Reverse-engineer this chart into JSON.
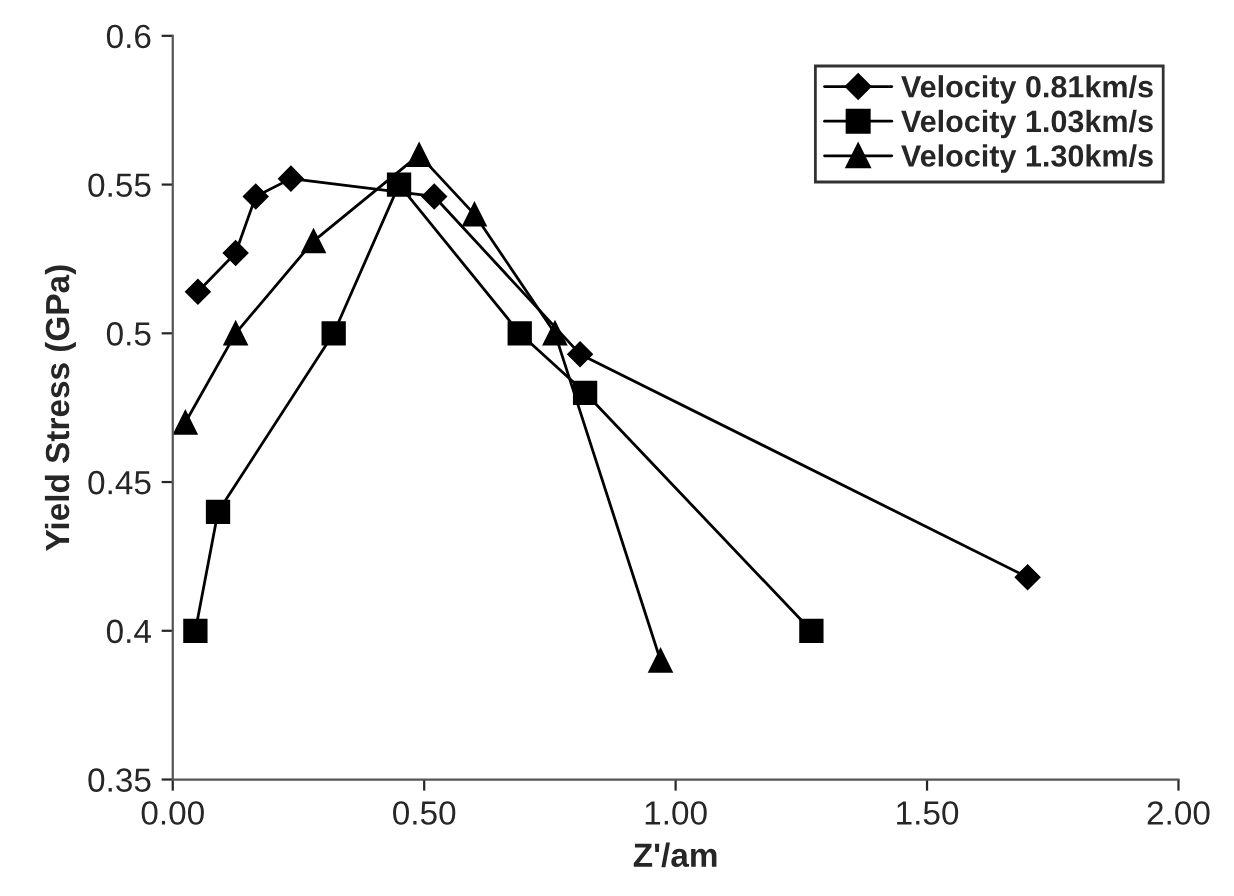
{
  "chart_data": {
    "type": "line",
    "xlabel": "Z'/am",
    "ylabel": "Yield Stress (GPa)",
    "xlim": [
      0,
      2
    ],
    "xticks": [
      {
        "value": 0,
        "label": "0.00"
      },
      {
        "value": 0.5,
        "label": "0.50"
      },
      {
        "value": 1,
        "label": "1.00"
      },
      {
        "value": 1.5,
        "label": "1.50"
      },
      {
        "value": 2,
        "label": "2.00"
      }
    ],
    "ylim": [
      0.35,
      0.6
    ],
    "yticks": [
      0.35,
      0.4,
      0.45,
      0.5,
      0.55,
      0.6
    ],
    "legend": "top right",
    "grid": false,
    "line_style": "solid",
    "series": [
      {
        "name": "Velocity 0.81km/s",
        "color": "#000000",
        "marker": "diamond",
        "x": [
          0.05,
          0.125,
          0.165,
          0.235,
          0.52,
          0.81,
          1.7
        ],
        "values": [
          0.514,
          0.527,
          0.546,
          0.552,
          0.546,
          0.493,
          0.418
        ]
      },
      {
        "name": "Velocity 1.03km/s",
        "color": "#000000",
        "marker": "square",
        "x": [
          0.045,
          0.09,
          0.32,
          0.45,
          0.69,
          0.82,
          1.27
        ],
        "values": [
          0.4,
          0.44,
          0.5,
          0.55,
          0.5,
          0.48,
          0.4
        ]
      },
      {
        "name": "Velocity 1.30km/s",
        "color": "#000000",
        "marker": "triangle",
        "x": [
          0.025,
          0.125,
          0.28,
          0.49,
          0.6,
          0.76,
          0.97
        ],
        "values": [
          0.47,
          0.5,
          0.531,
          0.56,
          0.54,
          0.5,
          0.39
        ]
      }
    ]
  }
}
